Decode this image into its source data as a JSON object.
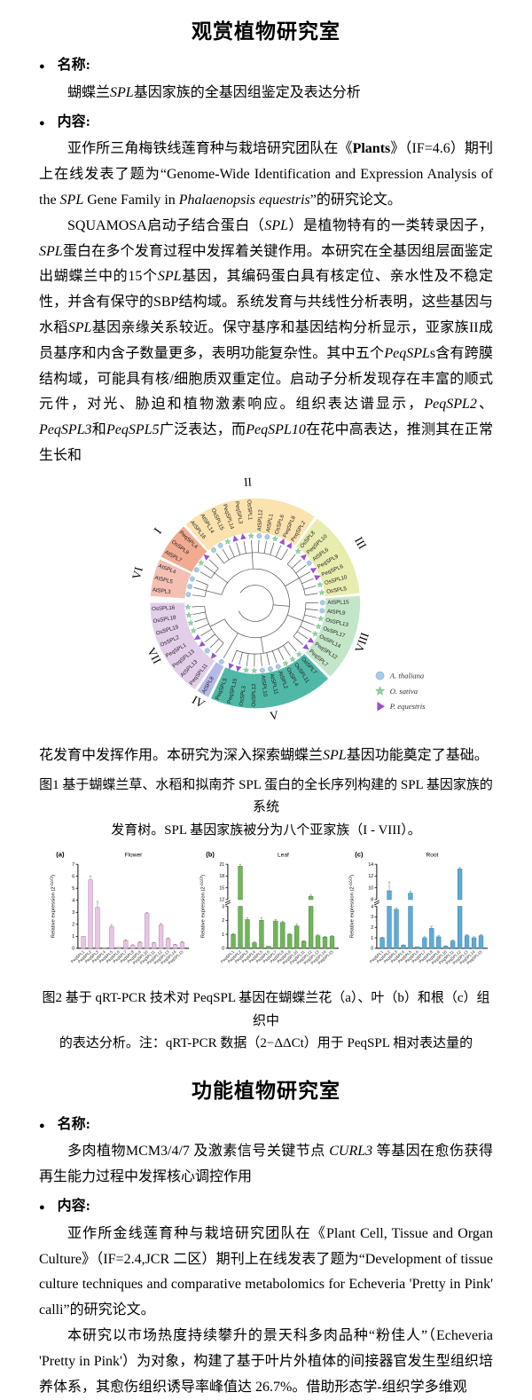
{
  "section1": {
    "title": "观赏植物研究室",
    "bullet_glyph": "●",
    "name_label": "名称:",
    "content_label": "内容:",
    "name_text": [
      {
        "t": "蝴蝶兰"
      },
      {
        "t": "SPL",
        "i": true
      },
      {
        "t": "基因家族的全基因组鉴定及表达分析"
      }
    ],
    "para1": [
      {
        "t": "亚作所三角梅铁线莲育种与栽培研究团队在《"
      },
      {
        "t": "Plants",
        "b": true
      },
      {
        "t": "》（IF=4.6）期刊上在线发表了题为“Genome-Wide Identification and Expression Analysis of the "
      },
      {
        "t": "SPL",
        "i": true
      },
      {
        "t": " Gene Family in "
      },
      {
        "t": "Phalaenopsis equestris",
        "i": true
      },
      {
        "t": "”的研究论文。"
      }
    ],
    "para2": [
      {
        "t": "SQUAMOSA启动子结合蛋白（"
      },
      {
        "t": "SPL",
        "i": true
      },
      {
        "t": "）是植物特有的一类转录因子，"
      },
      {
        "t": "SPL",
        "i": true
      },
      {
        "t": "蛋白在多个发育过程中发挥着关键作用。本研究在全基因组层面鉴定出蝴蝶兰中的15个"
      },
      {
        "t": "SPL",
        "i": true
      },
      {
        "t": "基因，其编码蛋白具有核定位、亲水性及不稳定性，并含有保守的SBP结构域。系统发育与共线性分析表明，这些基因与水稻"
      },
      {
        "t": "SPL",
        "i": true
      },
      {
        "t": "基因亲缘关系较近。保守基序和基因结构分析显示，亚家族II成员基序和内含子数量更多，表明功能复杂性。其中五个"
      },
      {
        "t": "PeqSPL",
        "i": true
      },
      {
        "t": "s含有跨膜结构域，可能具有核/细胞质双重定位。启动子分析发现存在丰富的顺式元件，对光、胁迫和植物激素响应。组织表达谱显示，"
      },
      {
        "t": "PeqSPL2",
        "i": true
      },
      {
        "t": "、"
      },
      {
        "t": "PeqSPL3",
        "i": true
      },
      {
        "t": "和"
      },
      {
        "t": "PeqSPL5",
        "i": true
      },
      {
        "t": "广泛表达，而"
      },
      {
        "t": "PeqSPL10",
        "i": true
      },
      {
        "t": "在花中高表达，推测其在正常生长和"
      }
    ],
    "para3": [
      {
        "t": "花发育中发挥作用。本研究为深入探索蝴蝶兰"
      },
      {
        "t": "SPL",
        "i": true
      },
      {
        "t": "基因功能奠定了基础。"
      }
    ]
  },
  "figure1": {
    "caption_line1": "图1 基于蝴蝶兰草、水稻和拟南芥 SPL 蛋白的全长序列构建的 SPL 基因家族的系统",
    "caption_line2": "发育树。SPL 基因家族被分为八个亚家族（I - VIII）。",
    "legend": [
      {
        "label": "A. thaliana",
        "marker": "circle",
        "color": "#a9c9e8",
        "edge": "#7fa6cc"
      },
      {
        "label": "O. sativa",
        "marker": "star",
        "color": "#8ed3a2",
        "edge": "#63ad7b"
      },
      {
        "label": "P. equestris",
        "marker": "triangle",
        "color": "#9b4fd6",
        "edge": "#7c35b5"
      }
    ],
    "subfamilies": [
      {
        "numeral": "VI",
        "color": "#f4c0b4",
        "genes": [
          "AtSPL3",
          "AtSPL5",
          "AtSPL4"
        ]
      },
      {
        "numeral": "I",
        "color": "#f1ab90",
        "genes": [
          "AtSPL7",
          "OsSPL9",
          "PeqSPL4"
        ]
      },
      {
        "numeral": "II",
        "color": "#fbe2ae",
        "genes": [
          "AtSPL16",
          "AtSPL14",
          "OsSPL15",
          "PeqSPL14",
          "PeqSPL3",
          "OsSPL1",
          "AtSPL12",
          "AtSPL1",
          "OsSPL6",
          "PeqSPL8",
          "PeqSPL2"
        ]
      },
      {
        "numeral": "III",
        "color": "#e8ecae",
        "genes": [
          "OsSPL8",
          "PeqSPL10",
          "AtSPL6",
          "PeqSPL9",
          "PeqSPL6",
          "OsSPL10",
          "OsSPL5"
        ]
      },
      {
        "numeral": "VIII",
        "color": "#c3e6c8",
        "genes": [
          "AtSPL15",
          "AtSPL9",
          "OsSPL13",
          "OsSPL17",
          "OsSPL14",
          "PeqSPL12",
          "PeqSPL7"
        ]
      },
      {
        "numeral": "V",
        "color": "#50b8a6",
        "genes": [
          "OsSPL7",
          "OsSPL11",
          "OsSPL4",
          "AtSPL2",
          "AtSPL11",
          "AtSPL10",
          "OsSPL12",
          "OsSPL3",
          "PeqSPL15",
          "PeqSPL5"
        ]
      },
      {
        "numeral": "IV",
        "color": "#b5b9e8",
        "genes": [
          "AtSPL8"
        ]
      },
      {
        "numeral": "VII",
        "color": "#e2cee9",
        "genes": [
          "PeqSPL11",
          "AtSPL13",
          "PeqSPL13",
          "PeqSPL1",
          "OsSPL2",
          "OsSPL19",
          "OsSPL18",
          "OsSPL16"
        ]
      }
    ]
  },
  "chart_data": [
    {
      "type": "bar",
      "panel_label": "(a)",
      "title": "Flower",
      "bar_color": "#e7c6e2",
      "bar_border": "#bf8cba",
      "ylabel_pre": "Relative expression (2",
      "ylabel_sup": "-ΔΔCt",
      "ylabel_post": ")",
      "categories": [
        "PeqSPL1",
        "PeqSPL2",
        "PeqSPL3",
        "PeqSPL4",
        "PeqSPL5",
        "PeqSPL6",
        "PeqSPL7",
        "PeqSPL8",
        "PeqSPL9",
        "PeqSPL10",
        "PeqSPL11",
        "PeqSPL12",
        "PeqSPL13",
        "PeqSPL14",
        "PeqSPL15"
      ],
      "values": [
        1.0,
        5.7,
        3.4,
        0.05,
        1.8,
        0.1,
        0.65,
        0.25,
        0.5,
        2.9,
        0.45,
        1.95,
        0.8,
        0.3,
        0.5
      ],
      "errors": [
        0,
        0.3,
        0.5,
        0,
        0.15,
        0,
        0.06,
        0.05,
        0.06,
        0.08,
        0.05,
        0.12,
        0.07,
        0.04,
        0.06
      ],
      "ymax": 7,
      "yticks": [
        0,
        1,
        2,
        3,
        4,
        5,
        6,
        7
      ]
    },
    {
      "type": "bar",
      "panel_label": "(b)",
      "title": "Leaf",
      "bar_color": "#72b45a",
      "bar_border": "#4a8f3c",
      "ylabel_pre": "Relative expression (2",
      "ylabel_sup": "-ΔΔCt",
      "ylabel_post": ")",
      "categories": [
        "PeqSPL1",
        "PeqSPL2",
        "PeqSPL3",
        "PeqSPL4",
        "PeqSPL5",
        "PeqSPL6",
        "PeqSPL7",
        "PeqSPL8",
        "PeqSPL9",
        "PeqSPL10",
        "PeqSPL11",
        "PeqSPL12",
        "PeqSPL13",
        "PeqSPL14",
        "PeqSPL15"
      ],
      "values": [
        1.0,
        20.5,
        2.05,
        0.4,
        2.0,
        0.15,
        1.95,
        1.85,
        1.0,
        1.6,
        0.5,
        12.8,
        0.9,
        0.8,
        0.85
      ],
      "errors": [
        0.06,
        0.7,
        0.12,
        0.05,
        0.2,
        0,
        0.1,
        0.1,
        0.06,
        0.12,
        0.05,
        0.35,
        0.1,
        0.06,
        0.06
      ],
      "axis_break": true,
      "lower": [
        0,
        3
      ],
      "upper": [
        12,
        21
      ],
      "lower_ticks": [
        0,
        1,
        2,
        3
      ],
      "upper_ticks": [
        12,
        15,
        18,
        21
      ]
    },
    {
      "type": "bar",
      "panel_label": "(c)",
      "title": "Root",
      "bar_color": "#5fabd6",
      "bar_border": "#3c86b4",
      "ylabel_pre": "Relative expression (2",
      "ylabel_sup": "-ΔΔCt",
      "ylabel_post": ")",
      "categories": [
        "PeqSPL1",
        "PeqSPL2",
        "PeqSPL3",
        "PeqSPL4",
        "PeqSPL5",
        "PeqSPL6",
        "PeqSPL7",
        "PeqSPL8",
        "PeqSPL9",
        "PeqSPL10",
        "PeqSPL11",
        "PeqSPL12",
        "PeqSPL13",
        "PeqSPL14",
        "PeqSPL15"
      ],
      "values": [
        1.0,
        9.5,
        3.7,
        0.3,
        9.1,
        0.15,
        1.0,
        1.9,
        1.1,
        0.2,
        0.7,
        13.2,
        1.2,
        1.0,
        1.2
      ],
      "errors": [
        0.06,
        1.5,
        0.15,
        0.04,
        0.3,
        0,
        0.1,
        0.2,
        0.1,
        0.04,
        0.1,
        0.25,
        0.12,
        0.1,
        0.12
      ],
      "axis_break": true,
      "lower": [
        0,
        4
      ],
      "upper": [
        8,
        14
      ],
      "lower_ticks": [
        0,
        1,
        2,
        3,
        4
      ],
      "upper_ticks": [
        8,
        10,
        12,
        14
      ]
    }
  ],
  "figure2": {
    "caption_line1": "图2 基于 qRT-PCR 技术对 PeqSPL 基因在蝴蝶兰花（a）、叶（b）和根（c）组织中",
    "caption_line2": "的表达分析。注：qRT-PCR 数据（2−ΔΔCt）用于 PeqSPL 相对表达量的"
  },
  "section2": {
    "title": "功能植物研究室",
    "bullet_glyph": "●",
    "name_label": "名称:",
    "content_label": "内容:",
    "name_text": [
      {
        "t": "多肉植物MCM3/4/7 及激素信号关键节点 "
      },
      {
        "t": "CURL3",
        "i": true
      },
      {
        "t": " 等基因在愈伤获得再生能力过程中发挥核心调控作用"
      }
    ],
    "para1": [
      {
        "t": "亚作所金线莲育种与栽培研究团队在《Plant Cell, Tissue and Organ Culture》（IF=2.4,JCR 二区）期刊上在线发表了题为“Development of tissue culture techniques and comparative metabolomics for Echeveria 'Pretty in Pink' calli”的研究论文。"
      }
    ],
    "para2": [
      {
        "t": "本研究以市场热度持续攀升的景天科多肉品种“粉佳人”（Echeveria 'Pretty in Pink'）为对象，构建了基于叶片外植体的间接器官发生型组织培养体系，其愈伤组织诱导率峰值达 26.7%。借助形态学-组织学多维观"
      }
    ]
  }
}
